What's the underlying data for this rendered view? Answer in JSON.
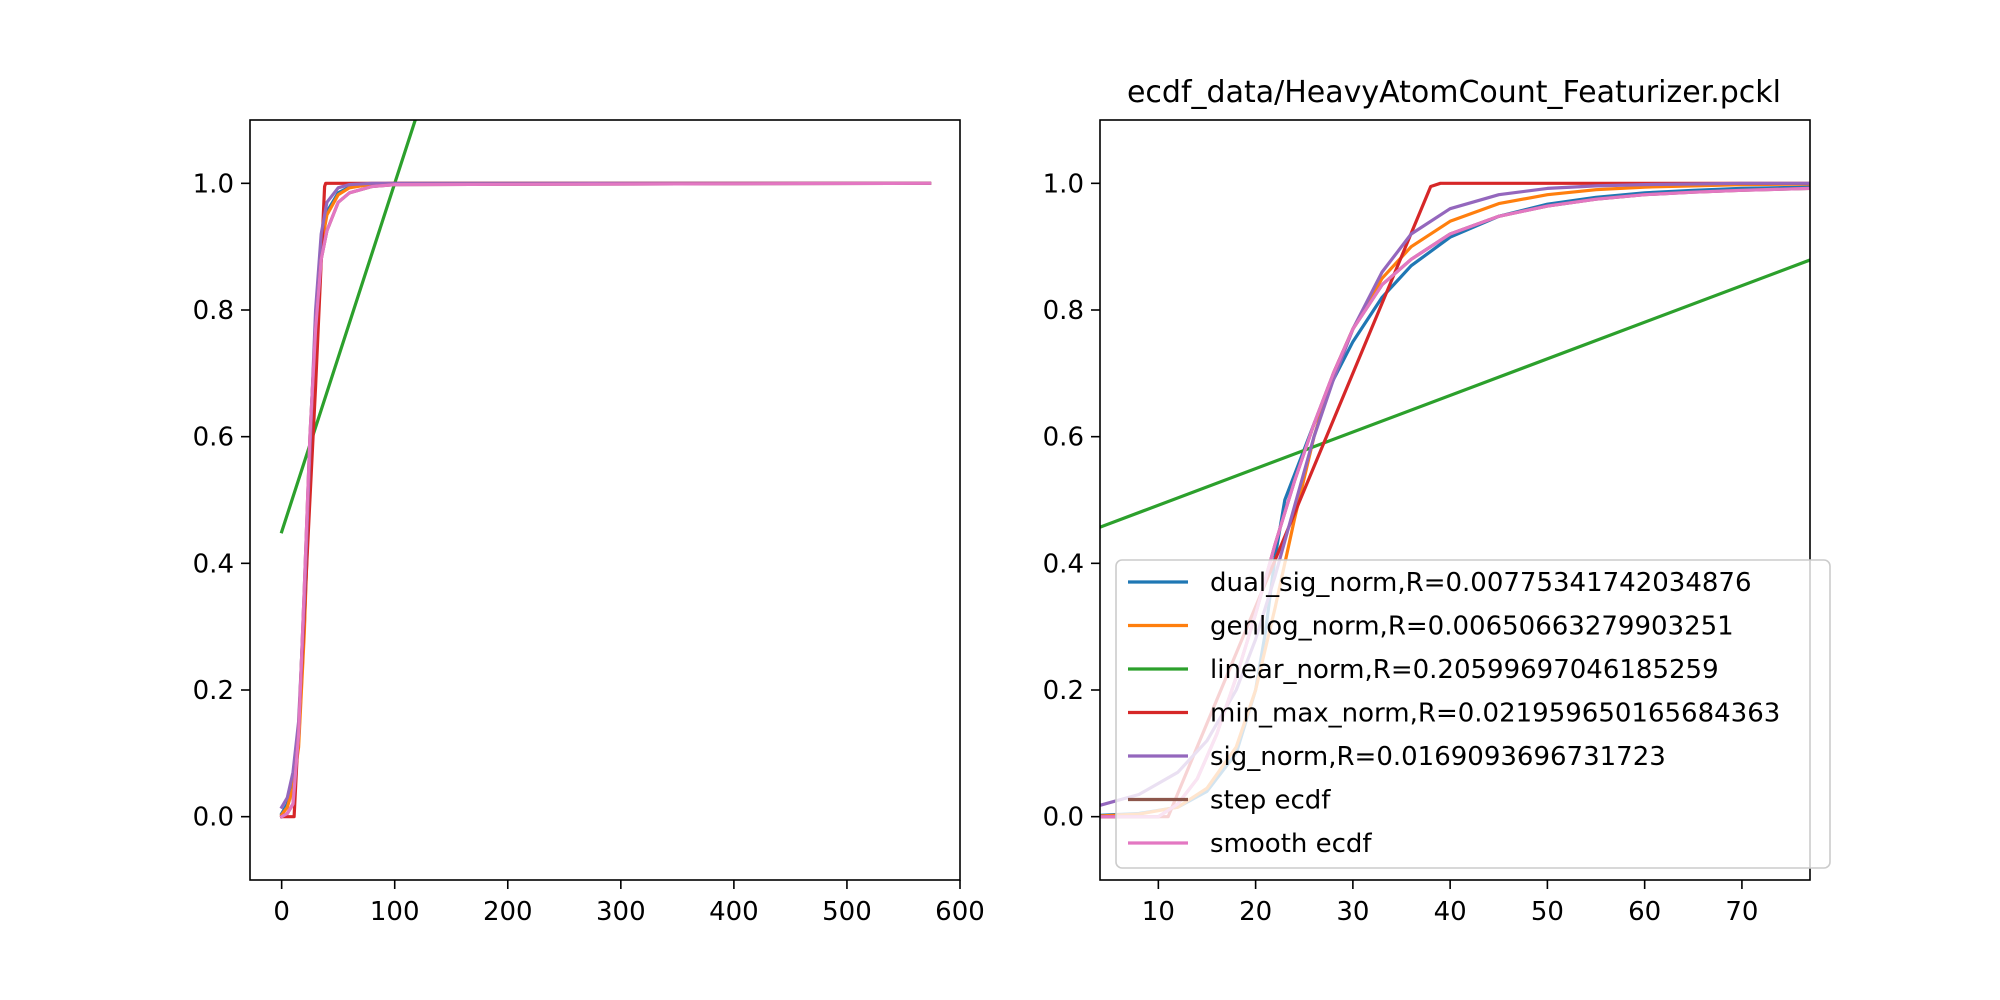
{
  "chart_data": [
    {
      "type": "line",
      "title": "",
      "xlabel": "",
      "ylabel": "",
      "xlim": [
        -28,
        600
      ],
      "ylim": [
        -0.1,
        1.1
      ],
      "xticks": [
        0,
        100,
        200,
        300,
        400,
        500,
        600
      ],
      "xtick_labels": [
        "0",
        "100",
        "200",
        "300",
        "400",
        "500",
        "600"
      ],
      "yticks": [
        0.0,
        0.2,
        0.4,
        0.6,
        0.8,
        1.0
      ],
      "ytick_labels": [
        "0.0",
        "0.2",
        "0.4",
        "0.6",
        "0.8",
        "1.0"
      ],
      "series": [
        {
          "name": "dual_sig_norm,R=0.00775341742034876",
          "color": "#1f77b4",
          "x": [
            0,
            5,
            10,
            15,
            20,
            25,
            30,
            35,
            40,
            50,
            60,
            80,
            100,
            573
          ],
          "y": [
            0.005,
            0.02,
            0.05,
            0.12,
            0.3,
            0.55,
            0.77,
            0.9,
            0.955,
            0.985,
            0.994,
            0.999,
            1.0,
            1.0
          ]
        },
        {
          "name": "genlog_norm,R=0.00650663279903251",
          "color": "#ff7f0e",
          "x": [
            0,
            5,
            10,
            15,
            20,
            25,
            30,
            35,
            40,
            50,
            60,
            80,
            100,
            573
          ],
          "y": [
            0.003,
            0.015,
            0.045,
            0.11,
            0.29,
            0.55,
            0.78,
            0.9,
            0.95,
            0.982,
            0.993,
            0.999,
            1.0,
            1.0
          ]
        },
        {
          "name": "linear_norm,R=0.20599697046185259",
          "color": "#2ca02c",
          "x": [
            0,
            120
          ],
          "y": [
            0.45,
            1.11
          ]
        },
        {
          "name": "min_max_norm,R=0.021959650165684363",
          "color": "#d62728",
          "x": [
            0,
            11,
            20,
            25,
            30,
            38,
            39,
            573
          ],
          "y": [
            0.0,
            0.0,
            0.32,
            0.5,
            0.68,
            0.995,
            1.0,
            1.0
          ]
        },
        {
          "name": "sig_norm,R=0.0169093696731723",
          "color": "#9467bd",
          "x": [
            0,
            5,
            10,
            15,
            20,
            25,
            30,
            35,
            40,
            50,
            60,
            80,
            100,
            573
          ],
          "y": [
            0.015,
            0.03,
            0.07,
            0.15,
            0.34,
            0.58,
            0.8,
            0.92,
            0.97,
            0.993,
            0.998,
            1.0,
            1.0,
            1.0
          ]
        },
        {
          "name": "step ecdf",
          "color": "#8c564b",
          "x": [
            0,
            5,
            10,
            15,
            20,
            25,
            30,
            35,
            40,
            50,
            60,
            80,
            100,
            573
          ],
          "y": [
            0.0,
            0.005,
            0.02,
            0.13,
            0.36,
            0.6,
            0.77,
            0.88,
            0.925,
            0.97,
            0.985,
            0.995,
            0.998,
            1.0
          ]
        },
        {
          "name": "smooth ecdf",
          "color": "#e377c2",
          "x": [
            0,
            5,
            10,
            15,
            20,
            25,
            30,
            35,
            40,
            50,
            60,
            80,
            100,
            573
          ],
          "y": [
            0.0,
            0.005,
            0.02,
            0.13,
            0.36,
            0.6,
            0.77,
            0.88,
            0.925,
            0.97,
            0.985,
            0.995,
            0.998,
            1.0
          ]
        }
      ]
    },
    {
      "type": "line",
      "title": "ecdf_data/HeavyAtomCount_Featurizer.pckl",
      "xlabel": "",
      "ylabel": "",
      "xlim": [
        4,
        77
      ],
      "ylim": [
        -0.1,
        1.1
      ],
      "xticks": [
        10,
        20,
        30,
        40,
        50,
        60,
        70
      ],
      "xtick_labels": [
        "10",
        "20",
        "30",
        "40",
        "50",
        "60",
        "70"
      ],
      "yticks": [
        0.0,
        0.2,
        0.4,
        0.6,
        0.8,
        1.0
      ],
      "ytick_labels": [
        "0.0",
        "0.2",
        "0.4",
        "0.6",
        "0.8",
        "1.0"
      ],
      "legend_position": "lower-right",
      "series": [
        {
          "name": "dual_sig_norm,R=0.00775341742034876",
          "color": "#1f77b4",
          "x": [
            4,
            8,
            12,
            15,
            18,
            20,
            21,
            22,
            23,
            24,
            26,
            28,
            30,
            33,
            36,
            40,
            45,
            50,
            55,
            60,
            65,
            70,
            77
          ],
          "y": [
            0.002,
            0.005,
            0.015,
            0.04,
            0.1,
            0.2,
            0.29,
            0.41,
            0.5,
            0.54,
            0.62,
            0.69,
            0.75,
            0.82,
            0.87,
            0.915,
            0.948,
            0.967,
            0.978,
            0.985,
            0.989,
            0.992,
            0.994
          ]
        },
        {
          "name": "genlog_norm,R=0.00650663279903251",
          "color": "#ff7f0e",
          "x": [
            4,
            8,
            12,
            15,
            18,
            20,
            22,
            24,
            26,
            28,
            30,
            33,
            36,
            40,
            45,
            50,
            55,
            60,
            65,
            70,
            77
          ],
          "y": [
            0.001,
            0.004,
            0.015,
            0.045,
            0.11,
            0.2,
            0.33,
            0.47,
            0.6,
            0.7,
            0.77,
            0.85,
            0.9,
            0.94,
            0.968,
            0.982,
            0.99,
            0.994,
            0.996,
            0.998,
            0.999
          ]
        },
        {
          "name": "linear_norm,R=0.20599697046185259",
          "color": "#2ca02c",
          "x": [
            4,
            77
          ],
          "y": [
            0.457,
            0.879
          ]
        },
        {
          "name": "min_max_norm,R=0.021959650165684363",
          "color": "#d62728",
          "x": [
            4,
            11,
            38,
            39,
            77
          ],
          "y": [
            0.0,
            0.0,
            0.995,
            1.0,
            1.0
          ]
        },
        {
          "name": "sig_norm,R=0.0169093696731723",
          "color": "#9467bd",
          "x": [
            4,
            8,
            12,
            15,
            18,
            20,
            22,
            24,
            26,
            28,
            30,
            33,
            36,
            40,
            45,
            50,
            55,
            60,
            65,
            70,
            77
          ],
          "y": [
            0.018,
            0.035,
            0.07,
            0.12,
            0.2,
            0.28,
            0.38,
            0.49,
            0.6,
            0.69,
            0.77,
            0.86,
            0.92,
            0.96,
            0.982,
            0.992,
            0.996,
            0.998,
            0.999,
            1.0,
            1.0
          ]
        },
        {
          "name": "step ecdf",
          "color": "#8c564b",
          "x": [
            4,
            10,
            12,
            14,
            16,
            18,
            20,
            22,
            24,
            26,
            28,
            30,
            33,
            36,
            40,
            45,
            50,
            55,
            60,
            65,
            70,
            77
          ],
          "y": [
            0.0,
            0.0,
            0.02,
            0.06,
            0.13,
            0.22,
            0.32,
            0.43,
            0.53,
            0.62,
            0.7,
            0.77,
            0.84,
            0.88,
            0.92,
            0.948,
            0.964,
            0.975,
            0.982,
            0.986,
            0.989,
            0.992
          ]
        },
        {
          "name": "smooth ecdf",
          "color": "#e377c2",
          "x": [
            4,
            10,
            12,
            14,
            16,
            18,
            20,
            22,
            24,
            26,
            28,
            30,
            33,
            36,
            40,
            45,
            50,
            55,
            60,
            65,
            70,
            77
          ],
          "y": [
            0.0,
            0.0,
            0.02,
            0.06,
            0.13,
            0.22,
            0.32,
            0.43,
            0.53,
            0.62,
            0.7,
            0.77,
            0.84,
            0.88,
            0.92,
            0.948,
            0.964,
            0.975,
            0.982,
            0.986,
            0.989,
            0.992
          ]
        }
      ]
    }
  ]
}
